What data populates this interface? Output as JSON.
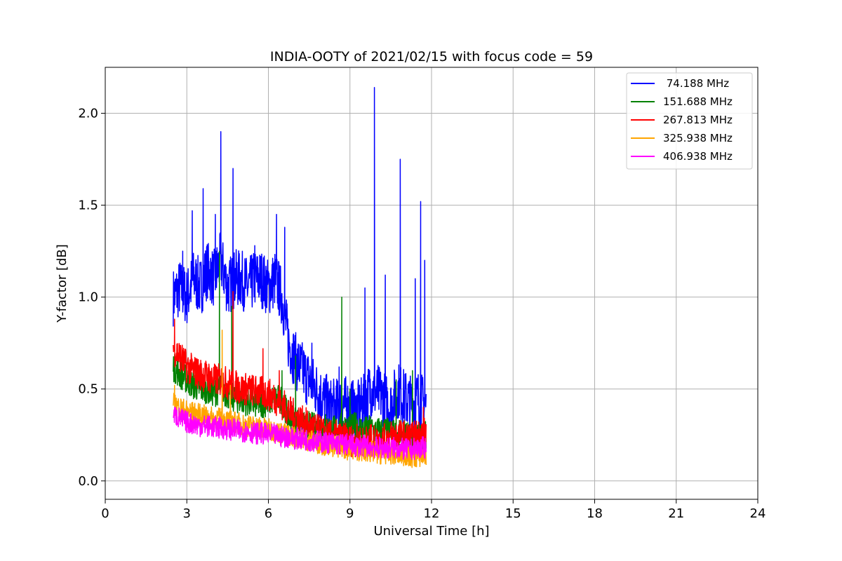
{
  "chart_data": {
    "type": "line",
    "title": "INDIA-OOTY of 2021/02/15 with focus code = 59",
    "xlabel": "Universal Time [h]",
    "ylabel": "Y-factor [dB]",
    "xlim": [
      0,
      24
    ],
    "ylim": [
      -0.1,
      2.25
    ],
    "xticks": [
      0,
      3,
      6,
      9,
      12,
      15,
      18,
      21,
      24
    ],
    "yticks": [
      0.0,
      0.5,
      1.0,
      1.5,
      2.0
    ],
    "ytick_labels": [
      "0.0",
      "0.5",
      "1.0",
      "1.5",
      "2.0"
    ],
    "grid": true,
    "legend_position": "top-right",
    "series": [
      {
        "name": " 74.188 MHz",
        "color": "#0000ff",
        "x": [
          2.5,
          2.75,
          3.0,
          3.25,
          3.5,
          3.75,
          4.0,
          4.25,
          4.5,
          4.75,
          5.0,
          5.25,
          5.5,
          5.75,
          6.0,
          6.25,
          6.5,
          6.75,
          7.0,
          7.25,
          7.5,
          7.75,
          8.0,
          8.25,
          8.5,
          8.75,
          9.0,
          9.25,
          9.5,
          9.75,
          10.0,
          10.25,
          10.5,
          10.75,
          11.0,
          11.25,
          11.5,
          11.8
        ],
        "y": [
          1.0,
          1.05,
          1.0,
          1.1,
          1.05,
          1.15,
          1.1,
          1.2,
          1.05,
          1.1,
          1.1,
          1.05,
          1.1,
          1.1,
          1.05,
          1.1,
          1.0,
          0.75,
          0.65,
          0.6,
          0.55,
          0.5,
          0.45,
          0.4,
          0.4,
          0.42,
          0.4,
          0.38,
          0.42,
          0.5,
          0.48,
          0.45,
          0.4,
          0.5,
          0.45,
          0.42,
          0.45,
          0.4
        ],
        "spikes": [
          [
            2.85,
            1.25
          ],
          [
            3.2,
            1.47
          ],
          [
            3.6,
            1.59
          ],
          [
            4.05,
            1.45
          ],
          [
            4.25,
            1.9
          ],
          [
            4.7,
            1.7
          ],
          [
            5.5,
            1.28
          ],
          [
            6.3,
            1.45
          ],
          [
            6.6,
            1.38
          ],
          [
            7.6,
            0.75
          ],
          [
            8.6,
            0.62
          ],
          [
            9.55,
            1.05
          ],
          [
            9.9,
            2.14
          ],
          [
            10.3,
            1.12
          ],
          [
            10.85,
            1.75
          ],
          [
            11.4,
            1.1
          ],
          [
            11.6,
            1.52
          ],
          [
            11.75,
            1.2
          ]
        ]
      },
      {
        "name": "151.688 MHz",
        "color": "#008000",
        "x": [
          2.5,
          2.75,
          3.0,
          3.25,
          3.5,
          3.75,
          4.0,
          4.25,
          4.5,
          4.75,
          5.0,
          5.25,
          5.5,
          5.75,
          6.0,
          6.25,
          6.5,
          6.75,
          7.0,
          7.25,
          7.5,
          7.75,
          8.0,
          8.25,
          8.5,
          8.75,
          9.0,
          9.25,
          9.5,
          9.75,
          10.0,
          10.25,
          10.5,
          10.75,
          11.0,
          11.25,
          11.5,
          11.8
        ],
        "y": [
          0.62,
          0.58,
          0.55,
          0.52,
          0.5,
          0.5,
          0.48,
          0.5,
          0.47,
          0.45,
          0.44,
          0.43,
          0.42,
          0.42,
          0.43,
          0.45,
          0.44,
          0.35,
          0.33,
          0.3,
          0.3,
          0.29,
          0.3,
          0.28,
          0.28,
          0.3,
          0.28,
          0.3,
          0.27,
          0.28,
          0.27,
          0.27,
          0.26,
          0.25,
          0.25,
          0.24,
          0.24,
          0.25
        ],
        "spikes": [
          [
            4.2,
            1.25
          ],
          [
            4.65,
            0.95
          ],
          [
            6.5,
            0.6
          ],
          [
            7.0,
            0.68
          ],
          [
            8.7,
            1.0
          ],
          [
            9.0,
            0.5
          ],
          [
            10.7,
            0.55
          ],
          [
            11.3,
            0.6
          ]
        ]
      },
      {
        "name": "267.813 MHz",
        "color": "#ff0000",
        "x": [
          2.5,
          2.75,
          3.0,
          3.25,
          3.5,
          3.75,
          4.0,
          4.25,
          4.5,
          4.75,
          5.0,
          5.25,
          5.5,
          5.75,
          6.0,
          6.25,
          6.5,
          6.75,
          7.0,
          7.25,
          7.5,
          7.75,
          8.0,
          8.25,
          8.5,
          8.75,
          9.0,
          9.25,
          9.5,
          9.75,
          10.0,
          10.25,
          10.5,
          10.75,
          11.0,
          11.25,
          11.5,
          11.8
        ],
        "y": [
          0.72,
          0.68,
          0.62,
          0.6,
          0.58,
          0.57,
          0.55,
          0.55,
          0.53,
          0.52,
          0.5,
          0.5,
          0.49,
          0.48,
          0.47,
          0.45,
          0.42,
          0.38,
          0.35,
          0.32,
          0.3,
          0.28,
          0.26,
          0.24,
          0.24,
          0.23,
          0.22,
          0.22,
          0.21,
          0.22,
          0.21,
          0.22,
          0.24,
          0.25,
          0.24,
          0.23,
          0.25,
          0.26
        ],
        "spikes": [
          [
            2.55,
            0.88
          ],
          [
            4.7,
            1.03
          ],
          [
            5.8,
            0.72
          ],
          [
            6.4,
            0.6
          ],
          [
            11.7,
            0.4
          ]
        ]
      },
      {
        "name": "325.938 MHz",
        "color": "#ffa500",
        "x": [
          2.5,
          2.75,
          3.0,
          3.25,
          3.5,
          3.75,
          4.0,
          4.25,
          4.5,
          4.75,
          5.0,
          5.25,
          5.5,
          5.75,
          6.0,
          6.25,
          6.5,
          6.75,
          7.0,
          7.25,
          7.5,
          7.75,
          8.0,
          8.25,
          8.5,
          8.75,
          9.0,
          9.25,
          9.5,
          9.75,
          10.0,
          10.25,
          10.5,
          10.75,
          11.0,
          11.25,
          11.5,
          11.8
        ],
        "y": [
          0.42,
          0.4,
          0.38,
          0.37,
          0.36,
          0.35,
          0.34,
          0.34,
          0.33,
          0.32,
          0.31,
          0.3,
          0.3,
          0.29,
          0.28,
          0.27,
          0.26,
          0.25,
          0.24,
          0.23,
          0.22,
          0.21,
          0.2,
          0.19,
          0.19,
          0.18,
          0.17,
          0.17,
          0.16,
          0.16,
          0.15,
          0.15,
          0.15,
          0.14,
          0.14,
          0.13,
          0.13,
          0.14
        ],
        "spikes": [
          [
            2.55,
            0.52
          ],
          [
            4.3,
            0.82
          ],
          [
            4.6,
            0.52
          ]
        ]
      },
      {
        "name": "406.938 MHz",
        "color": "#ff00ff",
        "x": [
          2.5,
          2.75,
          3.0,
          3.25,
          3.5,
          3.75,
          4.0,
          4.25,
          4.5,
          4.75,
          5.0,
          5.25,
          5.5,
          5.75,
          6.0,
          6.25,
          6.5,
          6.75,
          7.0,
          7.25,
          7.5,
          7.75,
          8.0,
          8.25,
          8.5,
          8.75,
          9.0,
          9.25,
          9.5,
          9.75,
          10.0,
          10.25,
          10.5,
          10.75,
          11.0,
          11.25,
          11.5,
          11.8
        ],
        "y": [
          0.36,
          0.34,
          0.32,
          0.31,
          0.3,
          0.3,
          0.29,
          0.29,
          0.28,
          0.28,
          0.27,
          0.27,
          0.26,
          0.26,
          0.25,
          0.25,
          0.24,
          0.24,
          0.23,
          0.23,
          0.22,
          0.22,
          0.21,
          0.21,
          0.2,
          0.2,
          0.2,
          0.19,
          0.19,
          0.19,
          0.18,
          0.18,
          0.18,
          0.18,
          0.17,
          0.17,
          0.18,
          0.18
        ],
        "spikes": []
      }
    ]
  }
}
